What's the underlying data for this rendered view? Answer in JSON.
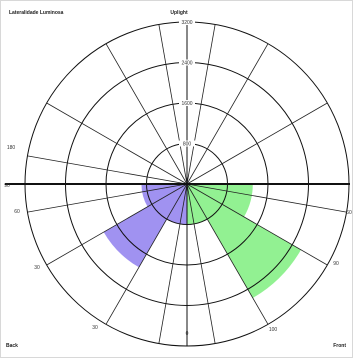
{
  "header": {
    "left_title": "Lateralidade Luminosa",
    "top_label": "Uplight",
    "bottom_left": "Back",
    "bottom_right": "Front"
  },
  "chart_data": {
    "type": "polar",
    "ring_values": [
      800,
      1600,
      2400,
      3200
    ],
    "ring_labels": [
      "800",
      "1600",
      "2400",
      "3200"
    ],
    "angle_labels": [
      {
        "angle": 180,
        "text": "180"
      },
      {
        "angle": 90,
        "text": "90"
      },
      {
        "angle": 60,
        "text": "60"
      },
      {
        "angle": 30,
        "text": "30"
      },
      {
        "angle": 0,
        "text": "0"
      },
      {
        "angle": -30,
        "text": "30"
      },
      {
        "angle": -60,
        "text": "60"
      },
      {
        "angle": -90,
        "text": "90"
      },
      {
        "angle": -100,
        "text": "100"
      }
    ],
    "spokes_deg": [
      0,
      30,
      60,
      80,
      100,
      120,
      150,
      170,
      190,
      210,
      240,
      260,
      280,
      300,
      330,
      350
    ],
    "series": [
      {
        "side": "back",
        "color": "#8877ee",
        "wedges": [
          {
            "start": 240,
            "end": 270,
            "value": 800
          },
          {
            "start": 210,
            "end": 240,
            "value": 1900
          },
          {
            "start": 180,
            "end": 210,
            "value": 900
          }
        ]
      },
      {
        "side": "front",
        "color": "#77ee77",
        "wedges": [
          {
            "start": 270,
            "end": 300,
            "value": 800
          },
          {
            "start": 300,
            "end": 330,
            "value": 2600
          },
          {
            "start": 330,
            "end": 360,
            "value": 1300
          }
        ]
      }
    ]
  }
}
